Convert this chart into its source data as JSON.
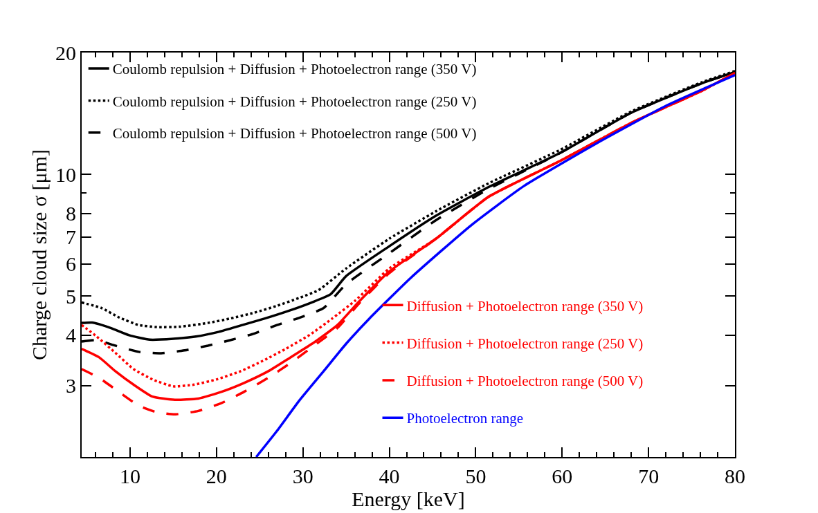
{
  "chart_data": {
    "type": "line",
    "xlabel": "Energy [keV]",
    "ylabel": "Charge cloud size σ [μm]",
    "log": "y",
    "legend": "top left",
    "xlim": [
      4.4,
      80
    ],
    "ylim": [
      2,
      20
    ],
    "xticks": [
      {
        "value": 6,
        "label": null
      },
      {
        "value": 8,
        "label": null
      },
      10,
      {
        "value": 12,
        "label": null
      },
      {
        "value": 14,
        "label": null
      },
      {
        "value": 16,
        "label": null
      },
      {
        "value": 18,
        "label": null
      },
      20,
      {
        "value": 22,
        "label": null
      },
      {
        "value": 24,
        "label": null
      },
      {
        "value": 26,
        "label": null
      },
      {
        "value": 28,
        "label": null
      },
      30,
      {
        "value": 32,
        "label": null
      },
      {
        "value": 34,
        "label": null
      },
      {
        "value": 36,
        "label": null
      },
      {
        "value": 38,
        "label": null
      },
      40,
      {
        "value": 42,
        "label": null
      },
      {
        "value": 44,
        "label": null
      },
      {
        "value": 46,
        "label": null
      },
      {
        "value": 48,
        "label": null
      },
      50,
      {
        "value": 52,
        "label": null
      },
      {
        "value": 54,
        "label": null
      },
      {
        "value": 56,
        "label": null
      },
      {
        "value": 58,
        "label": null
      },
      60,
      {
        "value": 62,
        "label": null
      },
      {
        "value": 64,
        "label": null
      },
      {
        "value": 66,
        "label": null
      },
      {
        "value": 68,
        "label": null
      },
      70,
      {
        "value": 72,
        "label": null
      },
      {
        "value": 74,
        "label": null
      },
      {
        "value": 76,
        "label": null
      },
      {
        "value": 78,
        "label": null
      },
      80
    ],
    "yticks": [
      3,
      4,
      5,
      6,
      7,
      8,
      {
        "value": 9,
        "label": null
      },
      10,
      20
    ],
    "grid": false,
    "marker": "none",
    "series": [
      {
        "name": "Coulomb repulsion + Diffusion + Photoelectron range (350 V)",
        "color": "#000000",
        "line_style": "solid",
        "x": [
          4.4,
          5.6,
          7.75,
          9.9,
          12.3,
          15.0,
          17.6,
          20.3,
          23.0,
          25.6,
          28.4,
          31.0,
          33.2,
          35.0,
          40.0,
          45.4,
          51.5,
          59.8,
          68.0,
          76.2,
          80
        ],
        "values": [
          4.29,
          4.3,
          4.17,
          4.0,
          3.9,
          3.92,
          3.97,
          4.08,
          4.24,
          4.4,
          4.6,
          4.82,
          5.05,
          5.6,
          6.64,
          7.9,
          9.3,
          11.3,
          14.2,
          16.8,
          17.9
        ]
      },
      {
        "name": "Coulomb repulsion + Diffusion + Photoelectron range (250 V)",
        "color": "#000000",
        "line_style": "dotted",
        "x": [
          4.4,
          6.7,
          8.8,
          11.0,
          13.1,
          15.8,
          19.0,
          21.6,
          24.4,
          27.0,
          29.6,
          31.8,
          35.0,
          40.0,
          45.4,
          51.5,
          59.8,
          68.0,
          76.2,
          80
        ],
        "values": [
          4.82,
          4.67,
          4.42,
          4.24,
          4.19,
          4.2,
          4.29,
          4.4,
          4.55,
          4.73,
          4.95,
          5.17,
          5.85,
          6.93,
          8.1,
          9.5,
          11.5,
          14.3,
          16.9,
          18.0
        ]
      },
      {
        "name": "Coulomb repulsion + Diffusion + Photoelectron range (500 V)",
        "color": "#000000",
        "line_style": "dashed",
        "x": [
          4.4,
          6.15,
          8.3,
          11.0,
          13.6,
          16.3,
          19.0,
          21.6,
          24.4,
          27.0,
          29.6,
          32.4,
          35.0,
          40.0,
          45.4,
          51.5,
          59.8,
          68.0,
          76.2,
          80
        ],
        "values": [
          3.86,
          3.89,
          3.77,
          3.64,
          3.61,
          3.67,
          3.77,
          3.89,
          4.04,
          4.24,
          4.42,
          4.67,
          5.35,
          6.38,
          7.7,
          9.2,
          11.3,
          14.2,
          16.8,
          17.9
        ]
      },
      {
        "name": "Diffusion + Photoelectron range (350 V)",
        "color": "#ff0000",
        "line_style": "solid",
        "x": [
          4.4,
          6.4,
          8.3,
          10.4,
          12.6,
          15.2,
          17.9,
          20.6,
          23.2,
          26.0,
          28.6,
          31.3,
          34.0,
          36.4,
          40.0,
          45.4,
          51.5,
          59.8,
          68.0,
          76.2,
          80
        ],
        "values": [
          3.7,
          3.53,
          3.26,
          3.02,
          2.82,
          2.77,
          2.79,
          2.9,
          3.05,
          3.26,
          3.53,
          3.84,
          4.24,
          4.82,
          5.75,
          6.93,
          8.8,
          10.8,
          13.4,
          16.1,
          17.8
        ]
      },
      {
        "name": "Diffusion + Photoelectron range (250 V)",
        "color": "#ff0000",
        "line_style": "dotted",
        "x": [
          4.4,
          6.15,
          8.3,
          10.4,
          12.6,
          15.0,
          17.4,
          20.0,
          22.8,
          25.4,
          28.0,
          30.8,
          33.4,
          36.1,
          40.0,
          45.4,
          51.5,
          59.8,
          68.0,
          76.2,
          80
        ],
        "values": [
          4.24,
          3.97,
          3.62,
          3.3,
          3.11,
          2.99,
          3.02,
          3.11,
          3.26,
          3.46,
          3.7,
          4.01,
          4.4,
          4.88,
          5.85,
          6.93,
          8.8,
          10.8,
          13.4,
          16.1,
          17.8
        ]
      },
      {
        "name": "Diffusion + Photoelectron range (500 V)",
        "color": "#ff0000",
        "line_style": "dashed",
        "x": [
          4.4,
          6.4,
          8.3,
          11.0,
          13.1,
          15.2,
          17.9,
          20.6,
          23.2,
          26.0,
          28.6,
          31.3,
          34.0,
          36.6,
          40.0,
          45.4,
          51.5,
          59.8,
          68.0,
          76.2,
          80
        ],
        "values": [
          3.3,
          3.14,
          2.94,
          2.68,
          2.58,
          2.55,
          2.6,
          2.72,
          2.9,
          3.14,
          3.42,
          3.77,
          4.17,
          4.82,
          5.7,
          6.93,
          8.8,
          10.8,
          13.4,
          16.1,
          17.8
        ]
      },
      {
        "name": "Photoelectron range",
        "color": "#0000ff",
        "line_style": "solid",
        "x": [
          24.6,
          27.0,
          29.6,
          32.4,
          35.0,
          37.7,
          42.5,
          49.5,
          55.6,
          63.9,
          72.1,
          80
        ],
        "values": [
          2.0,
          2.32,
          2.76,
          3.26,
          3.81,
          4.4,
          5.55,
          7.49,
          9.36,
          11.9,
          14.8,
          17.6
        ]
      }
    ]
  }
}
